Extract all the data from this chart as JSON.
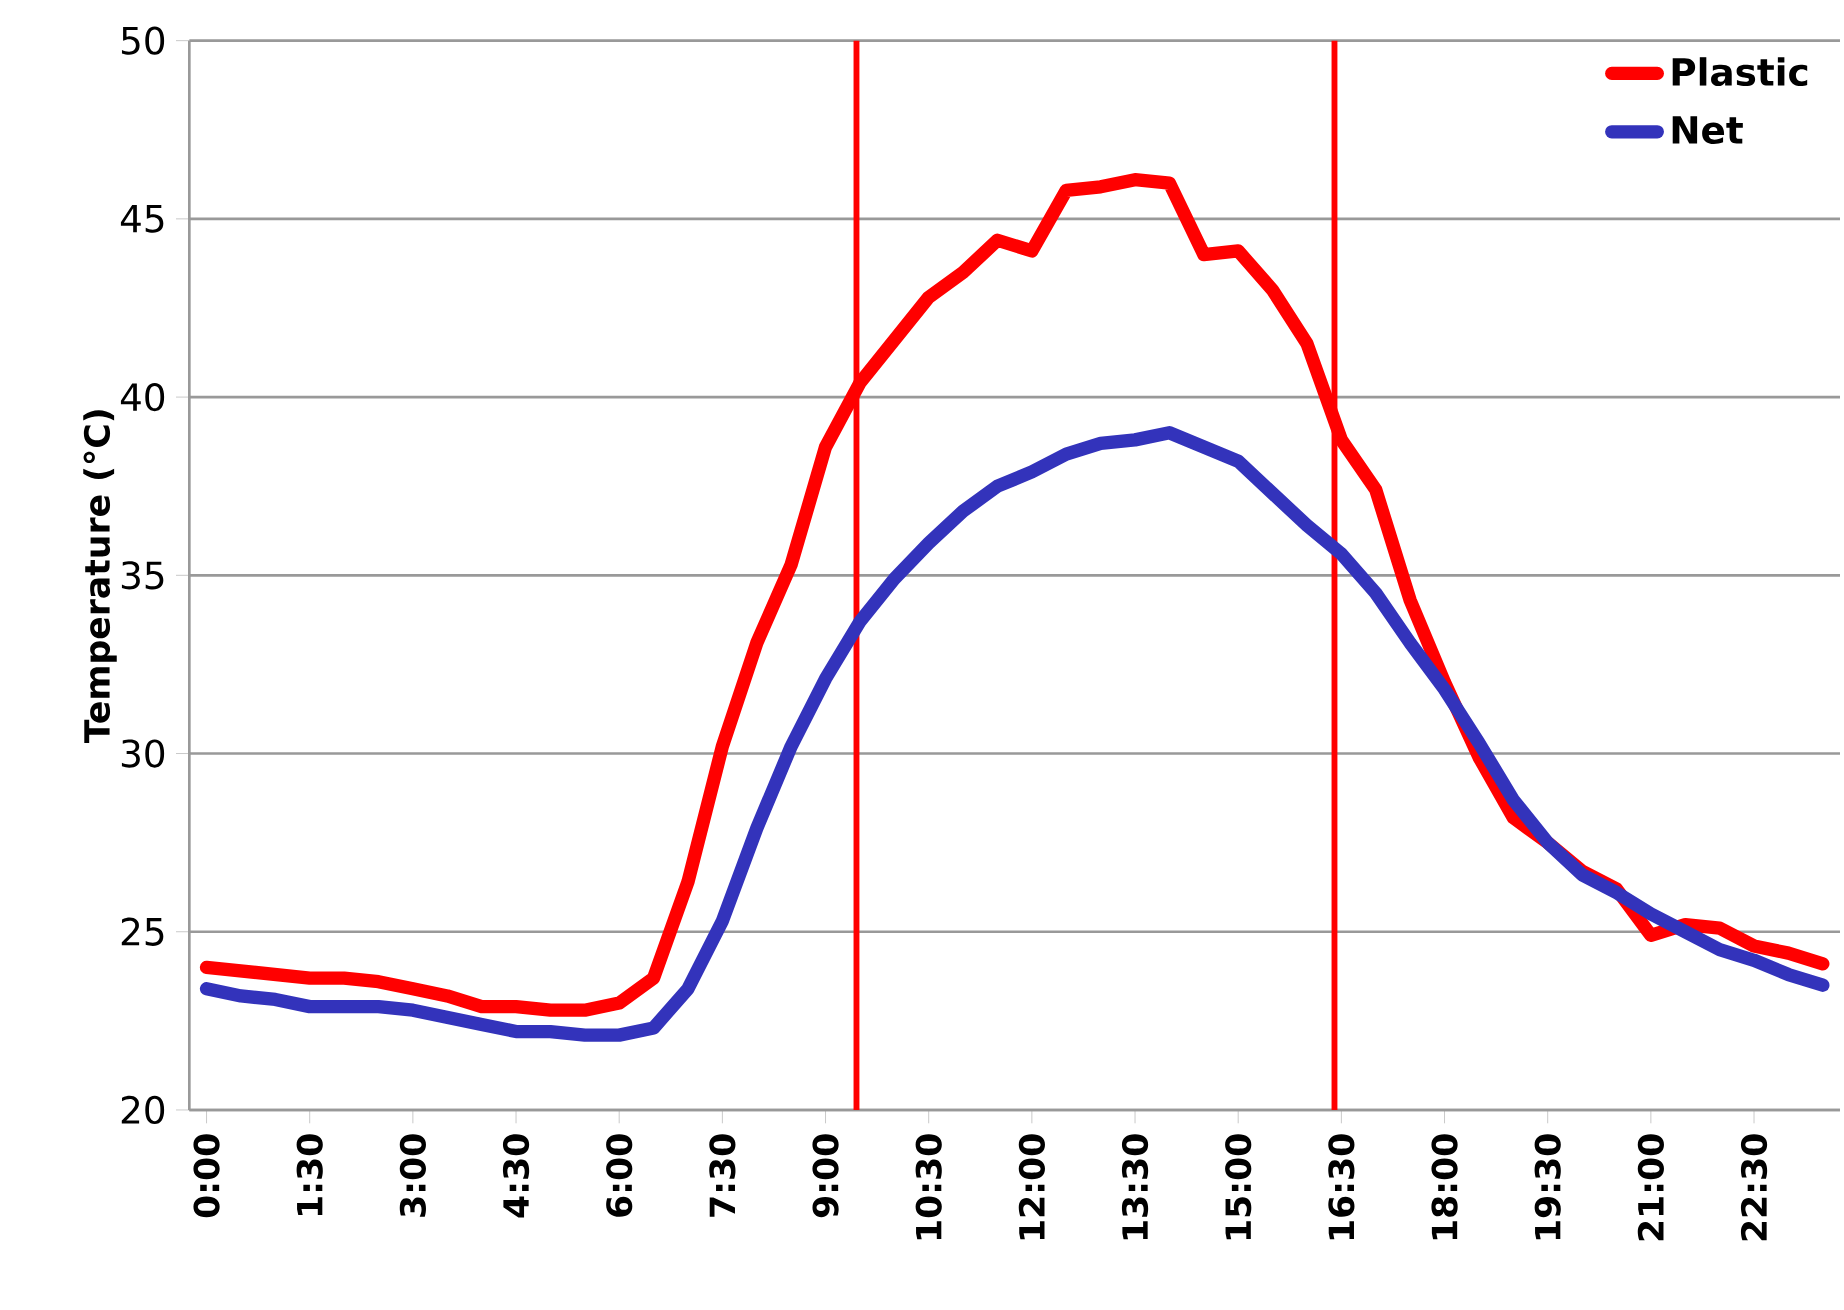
{
  "chart_data": {
    "type": "line",
    "ylabel": "Temperature (°C)",
    "x": [
      0,
      0.5,
      1,
      1.5,
      2,
      2.5,
      3,
      3.5,
      4,
      4.5,
      5,
      5.5,
      6,
      6.5,
      7,
      7.5,
      8,
      8.5,
      9,
      9.5,
      10,
      10.5,
      11,
      11.5,
      12,
      12.5,
      13,
      13.5,
      14,
      14.5,
      15,
      15.5,
      16,
      16.5,
      17,
      17.5,
      18,
      18.5,
      19,
      19.5,
      20,
      20.5,
      21,
      21.5,
      22,
      22.5,
      23,
      23.5
    ],
    "series": [
      {
        "name": "Plastic",
        "color": "#ff0000",
        "values": [
          24.0,
          23.9,
          23.8,
          23.7,
          23.7,
          23.6,
          23.4,
          23.2,
          22.9,
          22.9,
          22.8,
          22.8,
          23.0,
          23.7,
          26.4,
          30.2,
          33.1,
          35.3,
          38.6,
          40.4,
          41.6,
          42.8,
          43.5,
          44.4,
          44.1,
          45.8,
          45.9,
          46.1,
          46.0,
          44.0,
          44.1,
          43.0,
          41.5,
          38.8,
          37.4,
          34.3,
          32.0,
          29.9,
          28.2,
          27.5,
          26.7,
          26.2,
          24.9,
          25.2,
          25.1,
          24.6,
          24.4,
          24.1
        ]
      },
      {
        "name": "Net",
        "color": "#3333bb",
        "values": [
          23.4,
          23.2,
          23.1,
          22.9,
          22.9,
          22.9,
          22.8,
          22.6,
          22.4,
          22.2,
          22.2,
          22.1,
          22.1,
          22.3,
          23.4,
          25.3,
          27.9,
          30.2,
          32.1,
          33.7,
          34.9,
          35.9,
          36.8,
          37.5,
          37.9,
          38.4,
          38.7,
          38.8,
          39.0,
          38.6,
          38.2,
          37.3,
          36.4,
          35.6,
          34.5,
          33.1,
          31.8,
          30.3,
          28.7,
          27.5,
          26.6,
          26.1,
          25.5,
          25.0,
          24.5,
          24.2,
          23.8,
          23.5
        ]
      }
    ],
    "ref_lines": [
      {
        "axis": "x",
        "value": 9.45,
        "color": "#ff0000"
      },
      {
        "axis": "x",
        "value": 16.4,
        "color": "#ff0000"
      }
    ],
    "xlim": [
      -0.25,
      23.75
    ],
    "xticks": [
      {
        "value": 0,
        "label": "0:00"
      },
      {
        "value": 1.5,
        "label": "1:30"
      },
      {
        "value": 3,
        "label": "3:00"
      },
      {
        "value": 4.5,
        "label": "4:30"
      },
      {
        "value": 6,
        "label": "6:00"
      },
      {
        "value": 7.5,
        "label": "7:30"
      },
      {
        "value": 9,
        "label": "9:00"
      },
      {
        "value": 10.5,
        "label": "10:30"
      },
      {
        "value": 12,
        "label": "12:00"
      },
      {
        "value": 13.5,
        "label": "13:30"
      },
      {
        "value": 15,
        "label": "15:00"
      },
      {
        "value": 16.5,
        "label": "16:30"
      },
      {
        "value": 18,
        "label": "18:00"
      },
      {
        "value": 19.5,
        "label": "19:30"
      },
      {
        "value": 21,
        "label": "21:00"
      },
      {
        "value": 22.5,
        "label": "22:30"
      }
    ],
    "ylim": [
      20,
      50
    ],
    "yticks": [
      20,
      25,
      30,
      35,
      40,
      45,
      50
    ],
    "grid": "y",
    "legend": "top right",
    "marker": "none",
    "line_style": "solid"
  }
}
